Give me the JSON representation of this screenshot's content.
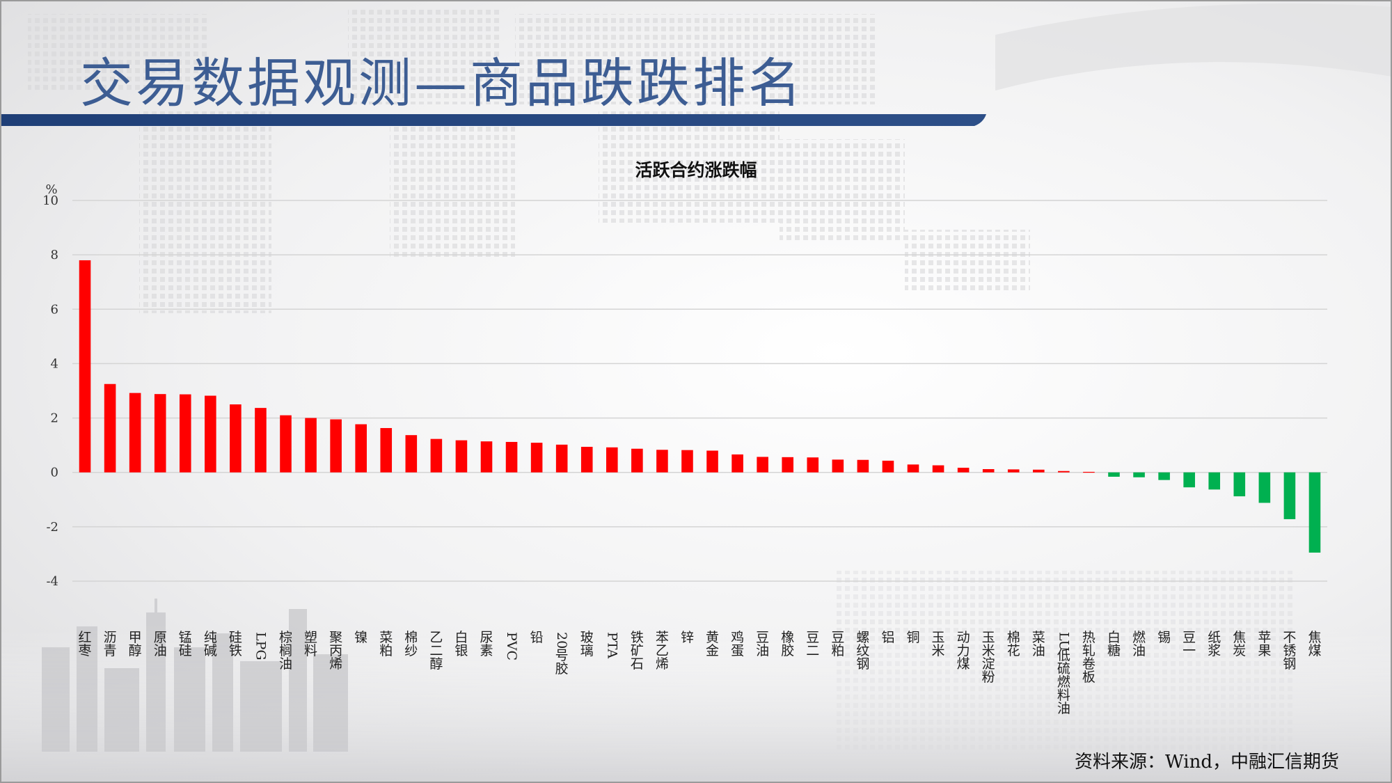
{
  "slide": {
    "title": "交易数据观测—商品跌跌排名",
    "source": "资料来源：Wind，中融汇信期货"
  },
  "colors": {
    "positive": "#ff0000",
    "negative": "#00b050",
    "title": "#3d5d93",
    "header_band": "#1f3f77",
    "grid": "#d4d4d4"
  },
  "chart_data": {
    "type": "bar",
    "title": "活跃合约涨跌幅",
    "ylabel": "%",
    "ylim": [
      -4,
      10
    ],
    "yticks": [
      10,
      8,
      6,
      4,
      2,
      0,
      -2,
      -4
    ],
    "grid": true,
    "categories": [
      "红枣",
      "沥青",
      "甲醇",
      "原油",
      "锰硅",
      "纯碱",
      "硅铁",
      "LPG",
      "棕榈油",
      "塑料",
      "聚丙烯",
      "镍",
      "菜粕",
      "棉纱",
      "乙二醇",
      "白银",
      "尿素",
      "PVC",
      "铅",
      "20号胶",
      "玻璃",
      "PTA",
      "铁矿石",
      "苯乙烯",
      "锌",
      "黄金",
      "鸡蛋",
      "豆油",
      "橡胶",
      "豆二",
      "豆粕",
      "螺纹钢",
      "铝",
      "铜",
      "玉米",
      "动力煤",
      "玉米淀粉",
      "棉花",
      "菜油",
      "LU低硫燃料油",
      "热轧卷板",
      "白糖",
      "燃油",
      "锡",
      "豆一",
      "纸浆",
      "焦炭",
      "苹果",
      "不锈钢",
      "焦煤"
    ],
    "values": [
      7.8,
      3.25,
      2.92,
      2.88,
      2.87,
      2.82,
      2.5,
      2.37,
      2.1,
      2.0,
      1.95,
      1.77,
      1.63,
      1.37,
      1.23,
      1.18,
      1.14,
      1.12,
      1.09,
      1.02,
      0.94,
      0.92,
      0.87,
      0.83,
      0.82,
      0.8,
      0.66,
      0.57,
      0.56,
      0.55,
      0.47,
      0.46,
      0.43,
      0.29,
      0.26,
      0.17,
      0.12,
      0.11,
      0.1,
      0.05,
      0.02,
      -0.16,
      -0.18,
      -0.28,
      -0.55,
      -0.63,
      -0.88,
      -1.12,
      -1.72,
      -2.95
    ]
  }
}
